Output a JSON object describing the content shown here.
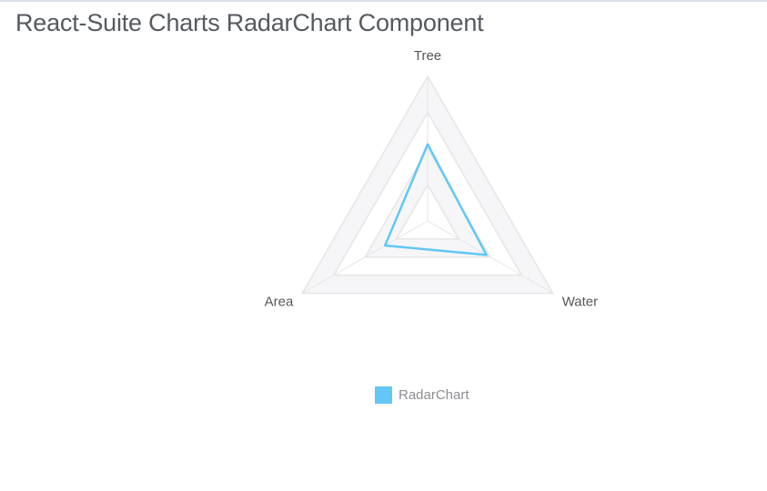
{
  "page": {
    "title": "React-Suite Charts RadarChart Component"
  },
  "chart_data": {
    "type": "radar",
    "indicators": [
      {
        "name": "Tree",
        "max": 100
      },
      {
        "name": "Water",
        "max": 100
      },
      {
        "name": "Area",
        "max": 100
      }
    ],
    "series": [
      {
        "name": "RadarChart",
        "values": [
          53,
          47,
          34
        ],
        "color": "#62c7f5"
      }
    ],
    "split_number": 4,
    "split_area_colors": [
      "#ffffff",
      "#f6f6f8"
    ],
    "split_line_color": "#e6e6e6",
    "legend_position": "bottom-center",
    "legend": {
      "label": "RadarChart"
    }
  }
}
